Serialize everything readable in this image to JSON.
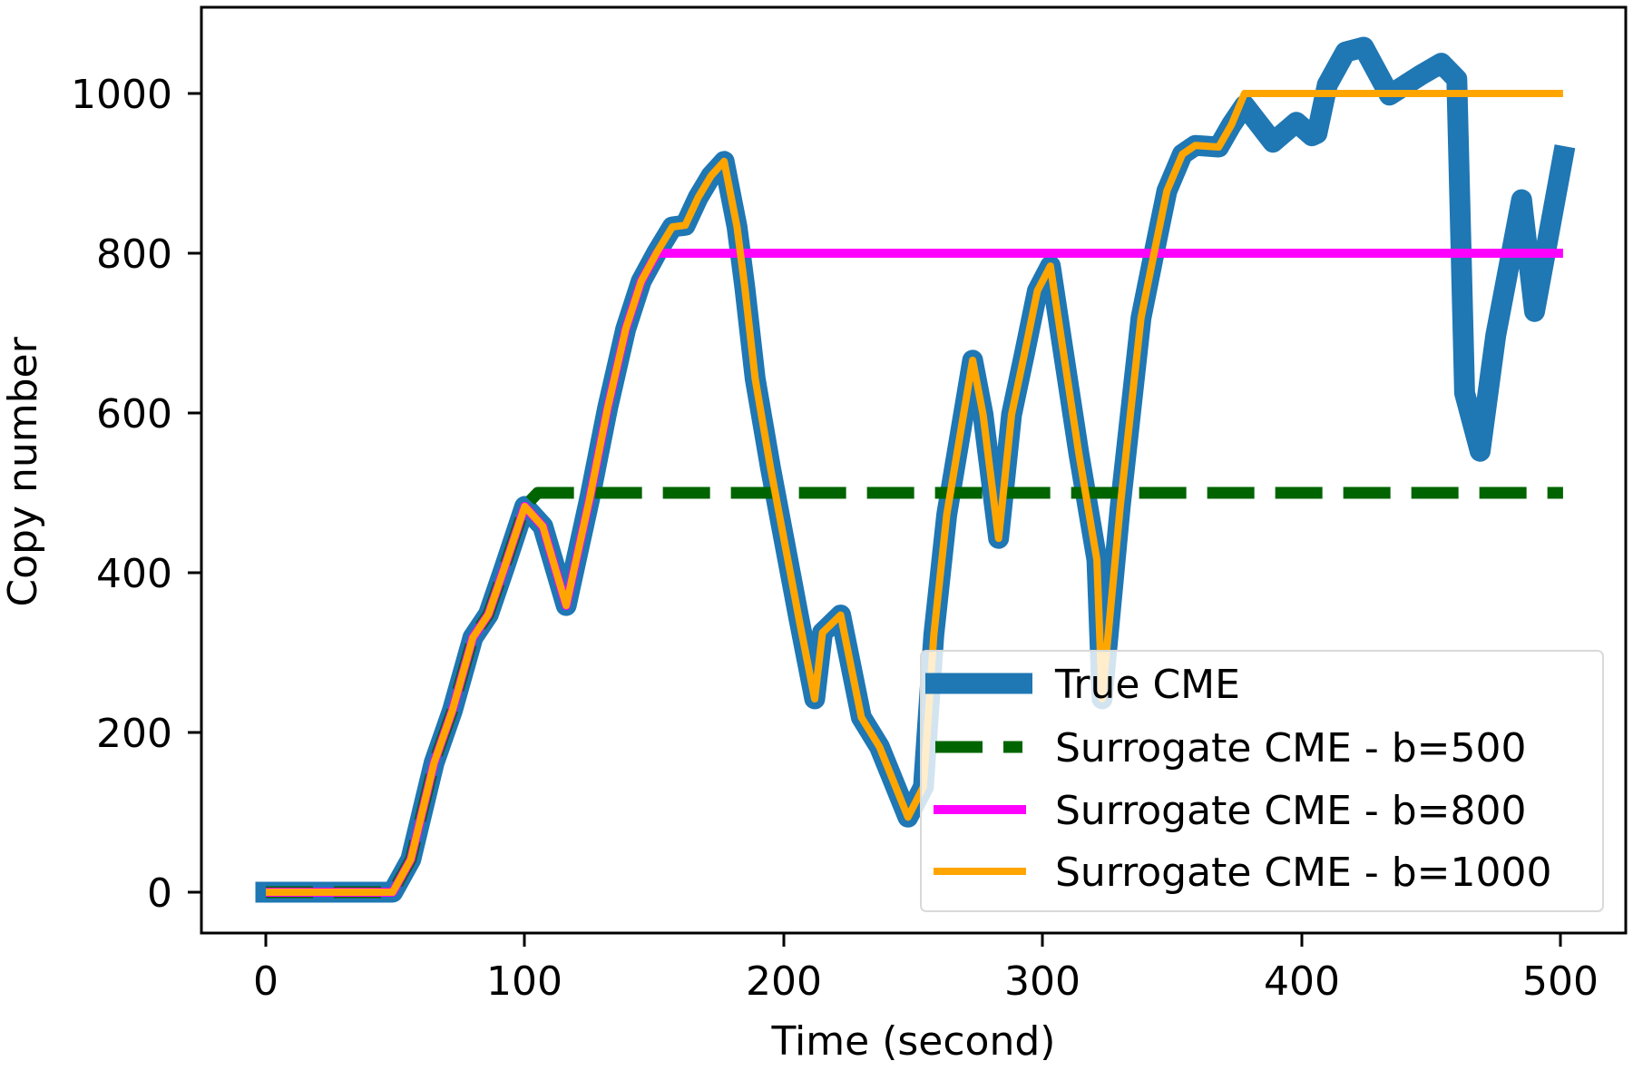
{
  "chart_data": {
    "type": "line",
    "title": "",
    "xlabel": "Time (second)",
    "ylabel": "Copy number",
    "xlim": [
      -25,
      528
    ],
    "ylim": [
      -52,
      1107
    ],
    "xticks": [
      0,
      100,
      200,
      300,
      400,
      500
    ],
    "yticks": [
      0,
      200,
      400,
      600,
      800,
      1000
    ],
    "grid": false,
    "legend_position": "lower right",
    "series": [
      {
        "name": "True CME",
        "color": "#1f77b4",
        "style": "solid",
        "width": 23,
        "x": [
          0,
          49,
          56,
          65,
          72,
          80,
          86,
          92,
          100,
          107,
          116,
          125,
          132,
          139,
          145,
          151,
          157,
          162,
          167,
          172,
          177,
          182,
          185,
          189,
          195,
          206,
          212,
          215,
          222,
          230,
          237,
          248,
          254,
          258,
          263,
          273,
          277,
          283,
          288,
          293,
          298,
          303,
          308,
          314,
          321,
          323,
          330,
          338,
          343,
          348,
          354,
          359,
          368,
          373,
          378,
          389,
          398,
          404,
          406,
          410,
          417,
          424,
          434,
          446,
          454,
          460,
          463,
          469,
          475,
          485,
          490,
          501
        ],
        "y": [
          0,
          0,
          41,
          162,
          227,
          319,
          348,
          405,
          483,
          458,
          359,
          492,
          606,
          705,
          765,
          801,
          833,
          835,
          870,
          897,
          915,
          833,
          757,
          643,
          530,
          341,
          242,
          325,
          347,
          219,
          182,
          94,
          132,
          322,
          473,
          666,
          598,
          443,
          598,
          674,
          753,
          784,
          677,
          549,
          416,
          242,
          483,
          719,
          799,
          878,
          924,
          935,
          933,
          961,
          985,
          939,
          964,
          947,
          950,
          1011,
          1052,
          1058,
          998,
          1023,
          1038,
          1018,
          625,
          552,
          697,
          867,
          727,
          921
        ]
      },
      {
        "name": "Surrogate CME - b=500",
        "color": "#006400",
        "style": "dashed",
        "width": 13,
        "x": [
          0,
          49,
          56,
          65,
          72,
          80,
          86,
          92,
          100,
          105,
          501
        ],
        "y": [
          0,
          0,
          41,
          162,
          227,
          319,
          348,
          405,
          483,
          500,
          500
        ]
      },
      {
        "name": "Surrogate CME - b=800",
        "color": "#ff00ff",
        "style": "solid",
        "width": 10,
        "x": [
          0,
          49,
          56,
          65,
          72,
          80,
          86,
          92,
          100,
          107,
          116,
          125,
          132,
          139,
          145,
          151,
          152,
          501
        ],
        "y": [
          0,
          0,
          41,
          162,
          227,
          319,
          348,
          405,
          483,
          458,
          359,
          492,
          606,
          705,
          765,
          800,
          800,
          800
        ]
      },
      {
        "name": "Surrogate CME - b=1000",
        "color": "#ffa500",
        "style": "solid",
        "width": 8,
        "x": [
          0,
          49,
          56,
          65,
          72,
          80,
          86,
          92,
          100,
          107,
          116,
          125,
          132,
          139,
          145,
          151,
          157,
          162,
          167,
          172,
          177,
          182,
          185,
          189,
          195,
          206,
          212,
          215,
          222,
          230,
          237,
          248,
          254,
          258,
          263,
          273,
          277,
          283,
          288,
          293,
          298,
          303,
          308,
          314,
          321,
          323,
          330,
          338,
          343,
          348,
          354,
          359,
          368,
          373,
          378,
          501
        ],
        "y": [
          0,
          0,
          41,
          162,
          227,
          319,
          348,
          405,
          483,
          458,
          359,
          492,
          606,
          705,
          765,
          801,
          833,
          835,
          870,
          897,
          915,
          833,
          757,
          643,
          530,
          341,
          242,
          325,
          347,
          219,
          182,
          94,
          132,
          322,
          473,
          666,
          598,
          443,
          598,
          674,
          753,
          784,
          677,
          549,
          416,
          242,
          483,
          719,
          799,
          878,
          924,
          935,
          933,
          961,
          1000,
          1000
        ]
      }
    ]
  },
  "legend": {
    "items": [
      {
        "label": "True CME"
      },
      {
        "label": "Surrogate CME - b=500"
      },
      {
        "label": "Surrogate CME - b=800"
      },
      {
        "label": "Surrogate CME - b=1000"
      }
    ]
  },
  "axes": {
    "xlabel": "Time (second)",
    "ylabel": "Copy number",
    "xtick_labels": [
      "0",
      "100",
      "200",
      "300",
      "400",
      "500"
    ],
    "ytick_labels": [
      "0",
      "200",
      "400",
      "600",
      "800",
      "1000"
    ]
  }
}
